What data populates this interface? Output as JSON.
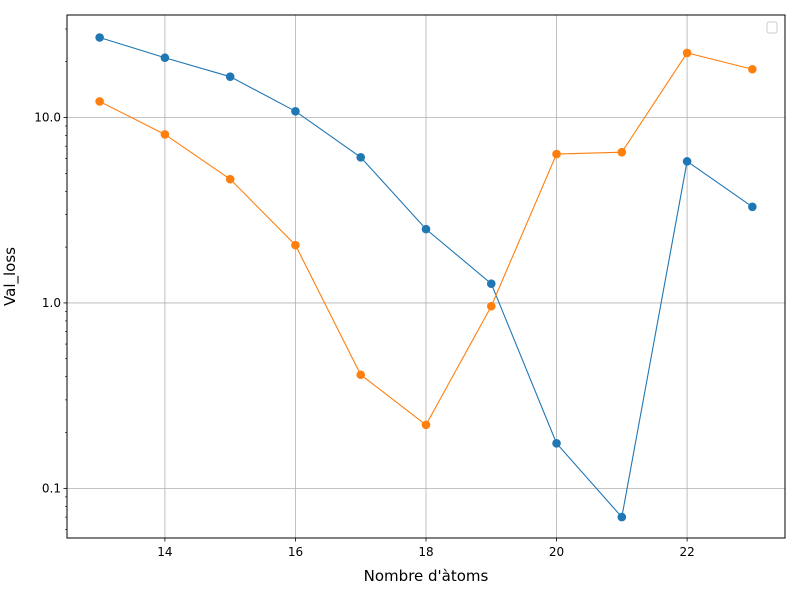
{
  "chart_data": {
    "type": "line",
    "title": "",
    "xlabel": "Nombre d'àtoms",
    "ylabel": "Val_loss",
    "yscale": "log",
    "grid": true,
    "legend": {
      "placement": "upper right",
      "entries": []
    },
    "x": [
      13,
      14,
      15,
      16,
      17,
      18,
      19,
      20,
      21,
      22,
      23
    ],
    "series": [
      {
        "color": "#1f77b4",
        "values": [
          27,
          21,
          16.6,
          10.8,
          6.1,
          2.5,
          1.27,
          0.175,
          0.07,
          5.8,
          3.3
        ]
      },
      {
        "color": "#ff7f0e",
        "values": [
          12.2,
          8.1,
          4.65,
          2.05,
          0.41,
          0.22,
          0.96,
          6.35,
          6.5,
          22.3,
          18.2
        ]
      }
    ],
    "xlim": [
      12.5,
      23.5
    ],
    "ylim": [
      0.054,
      35.7
    ],
    "xticks": [
      {
        "value": 14,
        "label": "14"
      },
      {
        "value": 16,
        "label": "16"
      },
      {
        "value": 18,
        "label": "18"
      },
      {
        "value": 20,
        "label": "20"
      },
      {
        "value": 22,
        "label": "22"
      }
    ],
    "yticks": [
      {
        "value": 0.1,
        "label": "0.1"
      },
      {
        "value": 1,
        "label": "1.0"
      },
      {
        "value": 10,
        "label": "10.0"
      }
    ]
  }
}
